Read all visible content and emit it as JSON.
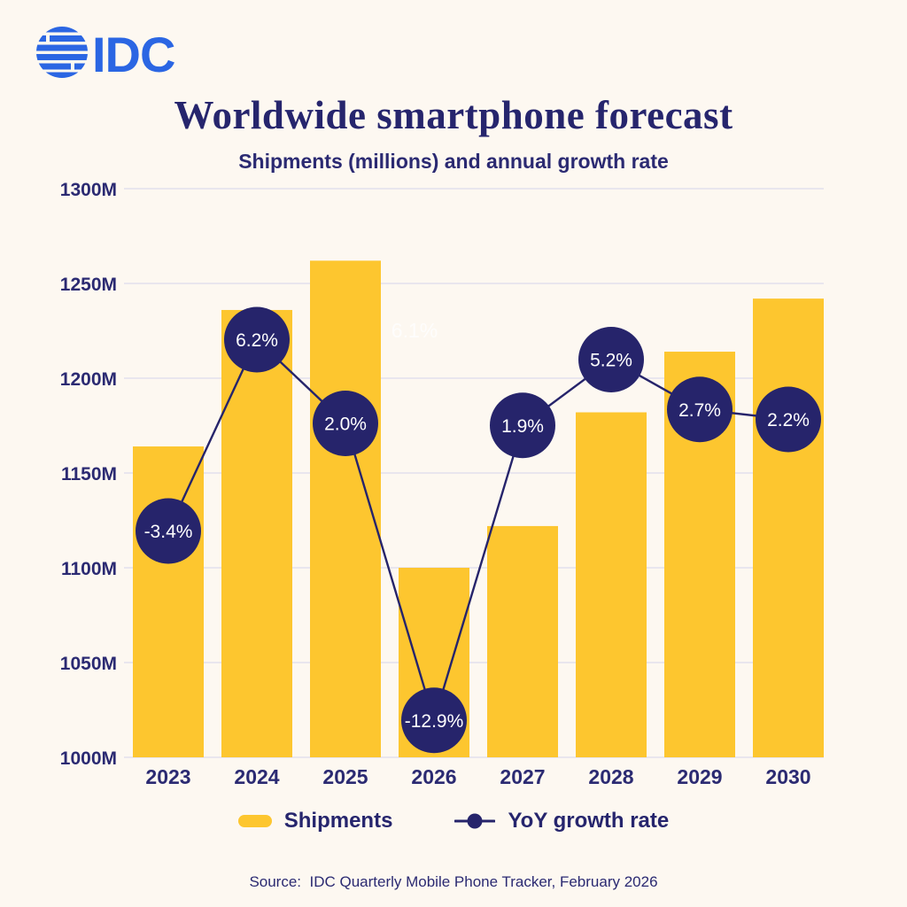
{
  "logo": {
    "text": "IDC",
    "color": "#2B66E3"
  },
  "header": {
    "title": "Worldwide smartphone forecast",
    "subtitle": "Shipments (millions) and annual growth rate"
  },
  "chart_data": {
    "type": "combo",
    "categories": [
      "2023",
      "2024",
      "2025",
      "2026",
      "2027",
      "2028",
      "2029",
      "2030"
    ],
    "series": [
      {
        "name": "Shipments",
        "type": "bar",
        "unit": "millions",
        "values": [
          1164,
          1236,
          1262,
          1100,
          1122,
          1182,
          1214,
          1242
        ],
        "color": "#FDC62F"
      },
      {
        "name": "YoY growth rate",
        "type": "line",
        "unit": "%",
        "values": [
          -3.4,
          6.2,
          2.0,
          -12.9,
          1.9,
          5.2,
          2.7,
          2.2
        ],
        "point_labels": [
          "-3.4%",
          "6.2%",
          "2.0%",
          "-12.9%",
          "1.9%",
          "5.2%",
          "2.7%",
          "2.2%"
        ],
        "color": "#26246B",
        "label_text_color": "#FFFFFF"
      }
    ],
    "y_axis": {
      "tick_labels": [
        "1300M",
        "1250M",
        "1200M",
        "1150M",
        "1100M",
        "1050M",
        "1000M"
      ],
      "tick_values": [
        1300,
        1250,
        1200,
        1150,
        1100,
        1050,
        1000
      ],
      "min": 1000,
      "max": 1300
    },
    "grid": true,
    "gridline_color": "#DDDCEC",
    "axis_text_color": "#2B2A72",
    "legend_position": "bottom",
    "ghost_label": "6.1%"
  },
  "legend": {
    "items": [
      {
        "label": "Shipments",
        "swatch": "bar",
        "color": "#FDC62F"
      },
      {
        "label": "YoY growth rate",
        "swatch": "line-dot",
        "color": "#26246B"
      }
    ]
  },
  "source": {
    "text": "Source:  IDC Quarterly Mobile Phone Tracker, February 2026"
  }
}
